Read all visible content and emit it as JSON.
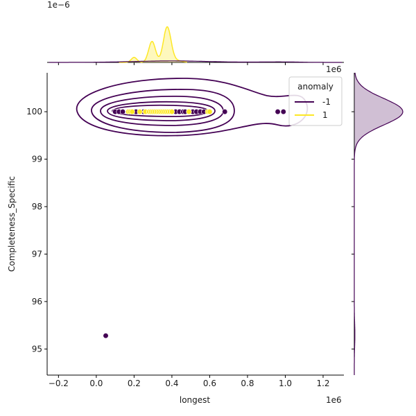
{
  "chart_data": {
    "type": "scatter",
    "xlabel": "longest",
    "ylabel": "Completeness_Specific",
    "x_offset_label": "1e6",
    "top_marginal_offset_label": "1e−6",
    "right_marginal_offset_label": "1e6",
    "xlim": [
      -0.26,
      1.31
    ],
    "ylim": [
      94.45,
      100.82
    ],
    "xticks": [
      -0.2,
      0.0,
      0.2,
      0.4,
      0.6,
      0.8,
      1.0,
      1.2
    ],
    "xtick_labels": [
      "−0.2",
      "0.0",
      "0.2",
      "0.4",
      "0.6",
      "0.8",
      "1.0",
      "1.2"
    ],
    "yticks": [
      95,
      96,
      97,
      98,
      99,
      100
    ],
    "ytick_labels": [
      "95",
      "96",
      "97",
      "98",
      "99",
      "100"
    ],
    "legend": {
      "title": "anomaly",
      "placement": "top-right",
      "entries": [
        {
          "label": "-1",
          "color": "#440154"
        },
        {
          "label": "1",
          "color": "#fde725"
        }
      ]
    },
    "colors": {
      "anomaly_neg": "#440154",
      "anomaly_pos": "#fde725",
      "grid": false
    },
    "series": [
      {
        "name": "-1",
        "color": "#440154",
        "points": [
          [
            0.05,
            95.28
          ],
          [
            0.1,
            100
          ],
          [
            0.12,
            100
          ],
          [
            0.14,
            100
          ],
          [
            0.21,
            100
          ],
          [
            0.25,
            100
          ],
          [
            0.42,
            100
          ],
          [
            0.44,
            100
          ],
          [
            0.46,
            100
          ],
          [
            0.47,
            100
          ],
          [
            0.51,
            100
          ],
          [
            0.53,
            100
          ],
          [
            0.55,
            100
          ],
          [
            0.57,
            100
          ],
          [
            0.68,
            100
          ],
          [
            0.96,
            100
          ],
          [
            0.99,
            100
          ]
        ]
      },
      {
        "name": "1",
        "color": "#fde725",
        "points": [
          [
            0.17,
            100
          ],
          [
            0.18,
            100
          ],
          [
            0.19,
            100
          ],
          [
            0.23,
            100
          ],
          [
            0.26,
            100
          ],
          [
            0.28,
            100
          ],
          [
            0.29,
            100
          ],
          [
            0.3,
            100
          ],
          [
            0.31,
            100
          ],
          [
            0.32,
            100
          ],
          [
            0.33,
            100
          ],
          [
            0.34,
            100
          ],
          [
            0.35,
            100
          ],
          [
            0.36,
            100
          ],
          [
            0.37,
            100
          ],
          [
            0.38,
            100
          ],
          [
            0.39,
            100
          ],
          [
            0.4,
            100
          ],
          [
            0.49,
            100
          ],
          [
            0.59,
            100
          ],
          [
            0.6,
            100
          ]
        ]
      }
    ]
  }
}
